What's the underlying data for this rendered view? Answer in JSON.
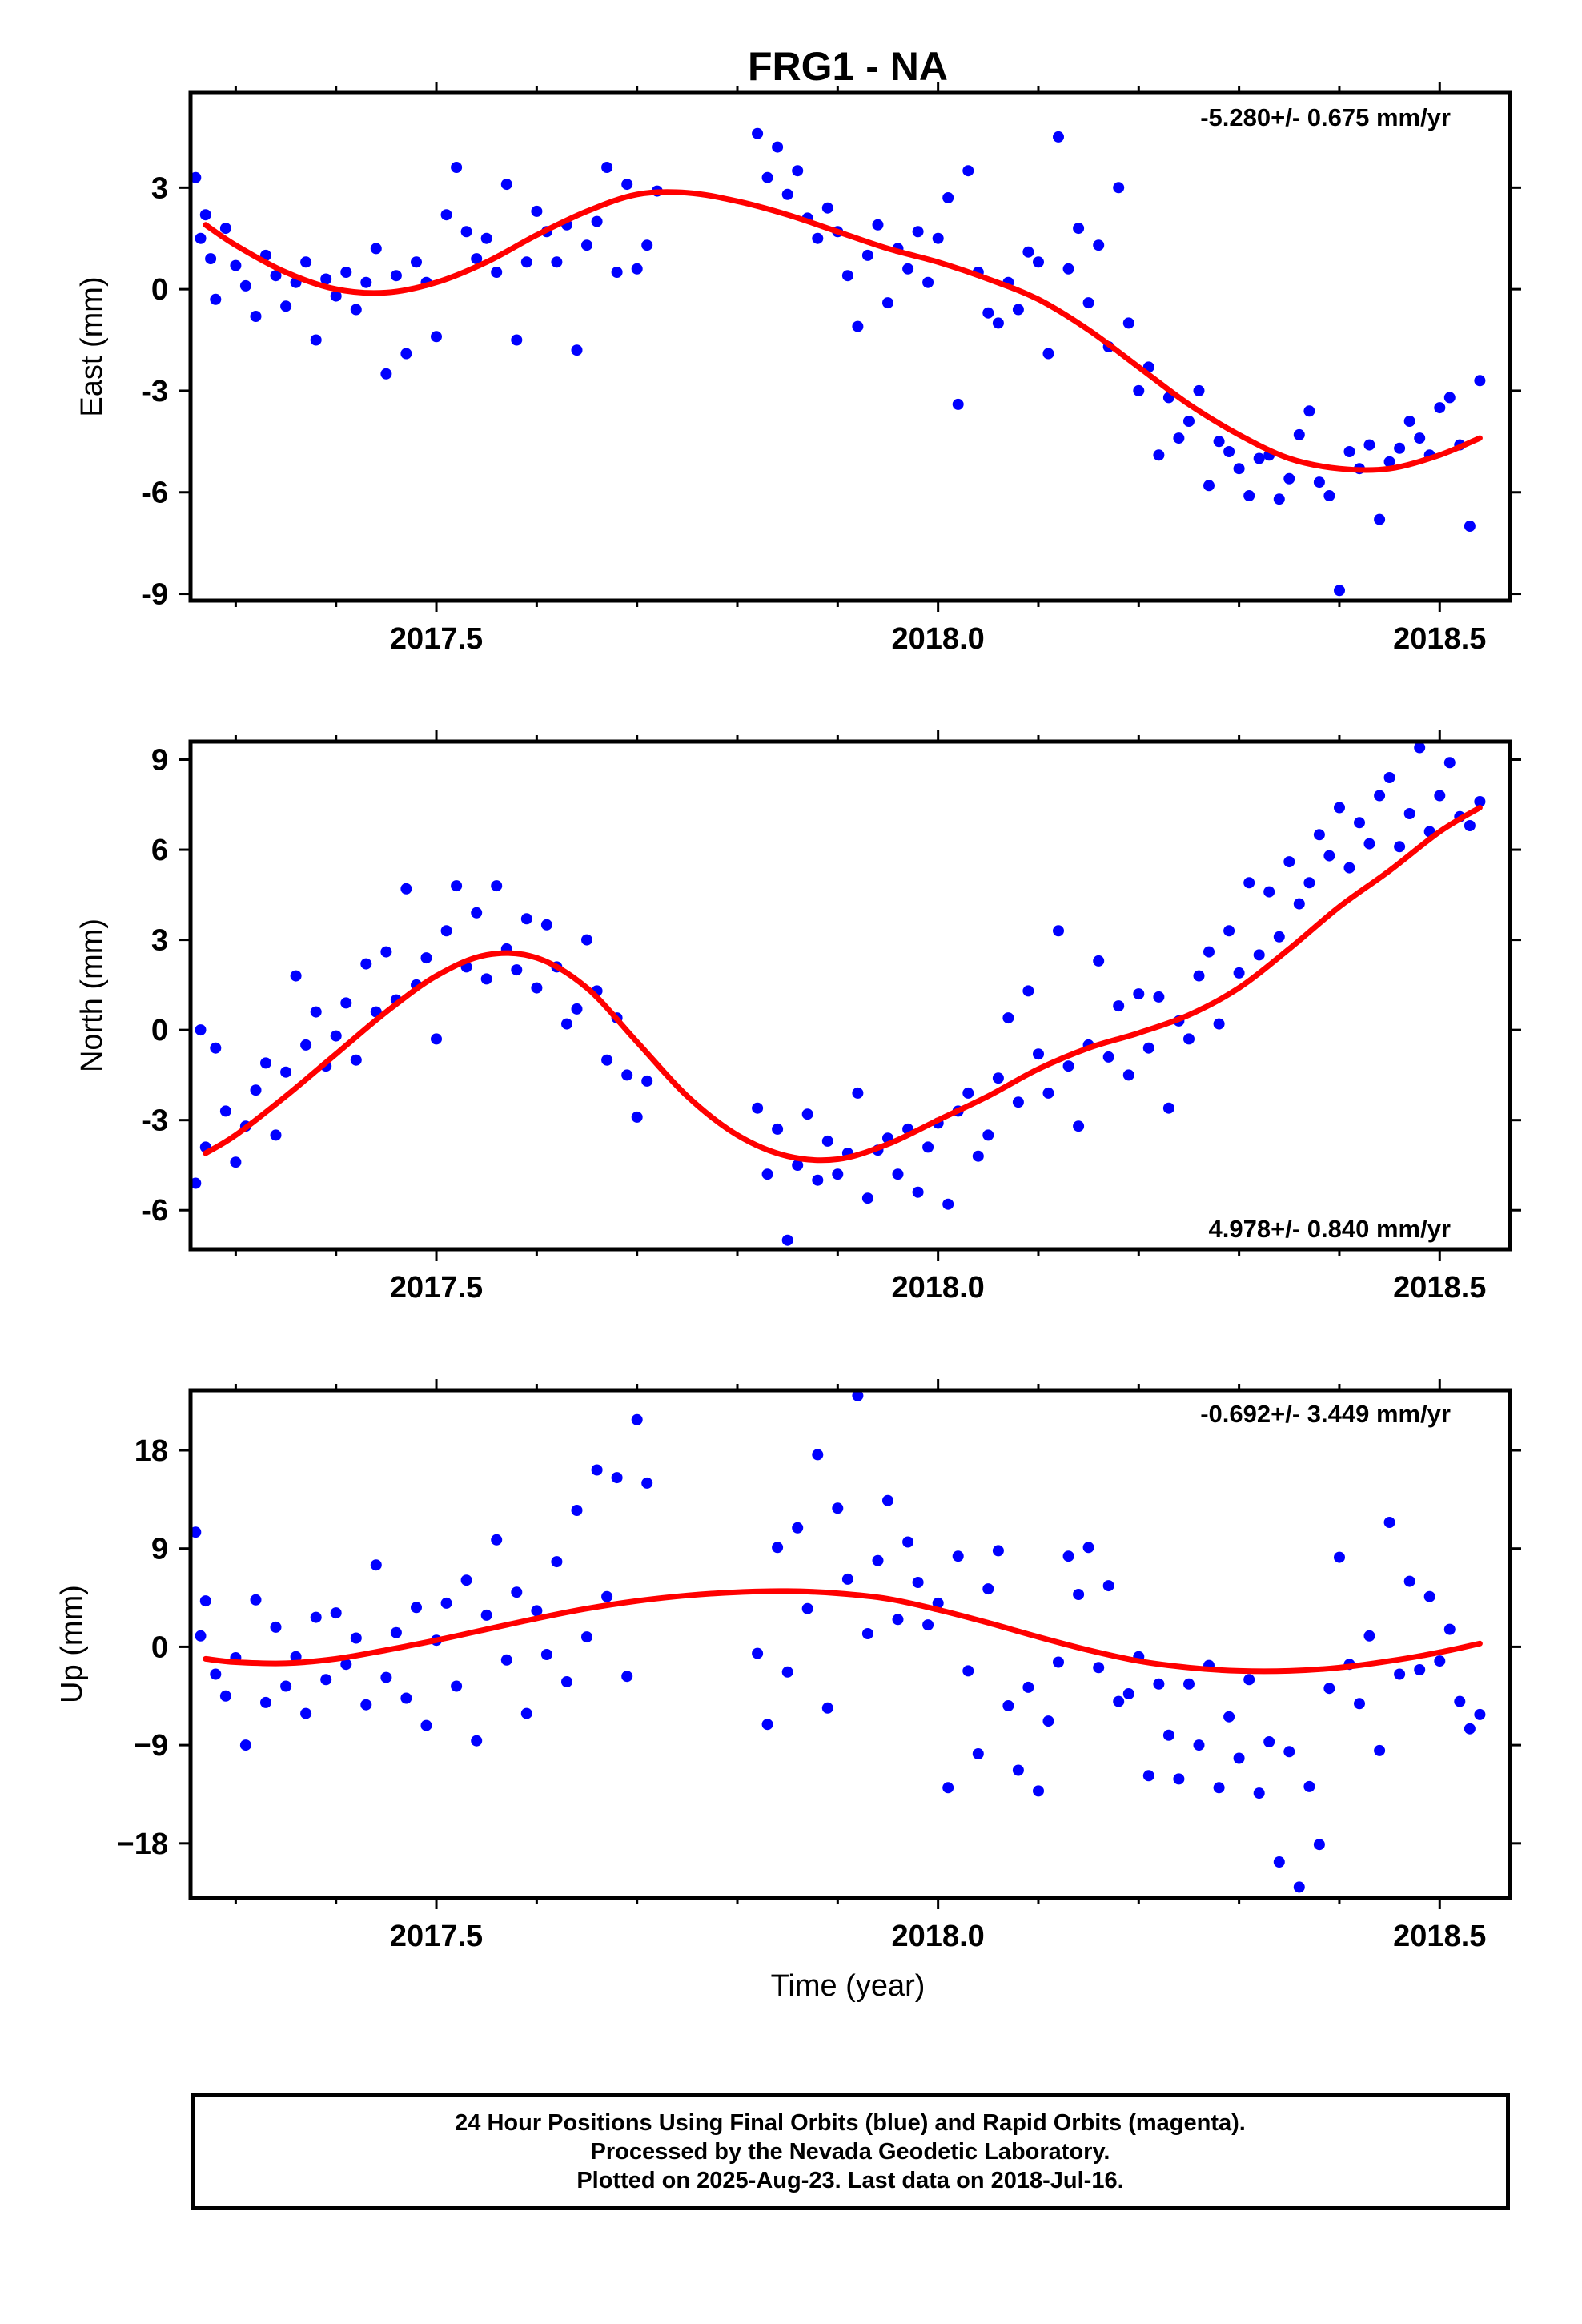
{
  "title": "FRG1 - NA",
  "xlabel": "Time (year)",
  "colors": {
    "points": "#0000ff",
    "fit": "#ff0000",
    "axes": "#000000"
  },
  "footer": {
    "line1": "24 Hour Positions Using Final Orbits (blue) and Rapid Orbits (magenta).",
    "line2": "Processed by the Nevada Geodetic Laboratory.",
    "line3": "Plotted on 2025-Aug-23. Last data on 2018-Jul-16."
  },
  "chart_data": [
    {
      "type": "scatter",
      "ylabel": "East (mm)",
      "rate_text": "-5.280+/- 0.675 mm/yr",
      "rate_position": "top-right",
      "xlim": [
        2017.255,
        2018.57
      ],
      "ylim": [
        -9.2,
        5.8
      ],
      "x_ticks": [
        2017.5,
        2018.0,
        2018.5
      ],
      "x_tick_labels": [
        "2017.5",
        "2018.0",
        "2018.5"
      ],
      "y_ticks": [
        -9,
        -6,
        -3,
        0,
        3
      ],
      "y_tick_labels": [
        "-9",
        "-6",
        "-3",
        "0",
        "3"
      ],
      "fit_curve": {
        "name": "fit",
        "x": [
          2017.27,
          2017.3,
          2017.35,
          2017.4,
          2017.45,
          2017.5,
          2017.55,
          2017.6,
          2017.65,
          2017.7,
          2017.75,
          2017.8,
          2017.85,
          2017.9,
          2017.95,
          2018.0,
          2018.05,
          2018.1,
          2018.15,
          2018.2,
          2018.25,
          2018.3,
          2018.35,
          2018.4,
          2018.45,
          2018.5,
          2018.54
        ],
        "y": [
          1.9,
          1.3,
          0.5,
          0.0,
          -0.1,
          0.2,
          0.8,
          1.6,
          2.3,
          2.8,
          2.85,
          2.6,
          2.2,
          1.7,
          1.2,
          0.8,
          0.3,
          -0.3,
          -1.2,
          -2.3,
          -3.4,
          -4.3,
          -5.0,
          -5.3,
          -5.3,
          -4.9,
          -4.4
        ]
      },
      "points": {
        "name": "observations",
        "x": [
          2017.26,
          2017.265,
          2017.27,
          2017.275,
          2017.28,
          2017.29,
          2017.3,
          2017.31,
          2017.32,
          2017.33,
          2017.34,
          2017.35,
          2017.36,
          2017.37,
          2017.38,
          2017.39,
          2017.4,
          2017.41,
          2017.42,
          2017.43,
          2017.44,
          2017.45,
          2017.46,
          2017.47,
          2017.48,
          2017.49,
          2017.5,
          2017.51,
          2017.52,
          2017.53,
          2017.54,
          2017.55,
          2017.56,
          2017.57,
          2017.58,
          2017.59,
          2017.6,
          2017.61,
          2017.62,
          2017.63,
          2017.64,
          2017.65,
          2017.66,
          2017.67,
          2017.68,
          2017.69,
          2017.7,
          2017.71,
          2017.72,
          2017.82,
          2017.83,
          2017.84,
          2017.85,
          2017.86,
          2017.87,
          2017.88,
          2017.89,
          2017.9,
          2017.91,
          2017.92,
          2017.93,
          2017.94,
          2017.95,
          2017.96,
          2017.97,
          2017.98,
          2017.99,
          2018.0,
          2018.01,
          2018.02,
          2018.03,
          2018.04,
          2018.05,
          2018.06,
          2018.07,
          2018.08,
          2018.09,
          2018.1,
          2018.11,
          2018.12,
          2018.13,
          2018.14,
          2018.15,
          2018.16,
          2018.17,
          2018.18,
          2018.19,
          2018.2,
          2018.21,
          2018.22,
          2018.23,
          2018.24,
          2018.25,
          2018.26,
          2018.27,
          2018.28,
          2018.29,
          2018.3,
          2018.31,
          2018.32,
          2018.33,
          2018.34,
          2018.35,
          2018.36,
          2018.37,
          2018.38,
          2018.39,
          2018.4,
          2018.41,
          2018.42,
          2018.43,
          2018.44,
          2018.45,
          2018.46,
          2018.47,
          2018.48,
          2018.49,
          2018.5,
          2018.51,
          2018.52,
          2018.53,
          2018.54
        ],
        "y": [
          3.3,
          1.5,
          2.2,
          0.9,
          -0.3,
          1.8,
          0.7,
          0.1,
          -0.8,
          1.0,
          0.4,
          -0.5,
          0.2,
          0.8,
          -1.5,
          0.3,
          -0.2,
          0.5,
          -0.6,
          0.2,
          1.2,
          -2.5,
          0.4,
          -1.9,
          0.8,
          0.2,
          -1.4,
          2.2,
          3.6,
          1.7,
          0.9,
          1.5,
          0.5,
          3.1,
          -1.5,
          0.8,
          2.3,
          1.7,
          0.8,
          1.9,
          -1.8,
          1.3,
          2.0,
          3.6,
          0.5,
          3.1,
          0.6,
          1.3,
          2.9,
          4.6,
          3.3,
          4.2,
          2.8,
          3.5,
          2.1,
          1.5,
          2.4,
          1.7,
          0.4,
          -1.1,
          1.0,
          1.9,
          -0.4,
          1.2,
          0.6,
          1.7,
          0.2,
          1.5,
          2.7,
          -3.4,
          3.5,
          0.5,
          -0.7,
          -1.0,
          0.2,
          -0.6,
          1.1,
          0.8,
          -1.9,
          4.5,
          0.6,
          1.8,
          -0.4,
          1.3,
          -1.7,
          3.0,
          -1.0,
          -3.0,
          -2.3,
          -4.9,
          -3.2,
          -4.4,
          -3.9,
          -3.0,
          -5.8,
          -4.5,
          -4.8,
          -5.3,
          -6.1,
          -5.0,
          -4.9,
          -6.2,
          -5.6,
          -4.3,
          -3.6,
          -5.7,
          -6.1,
          -8.9,
          -4.8,
          -5.3,
          -4.6,
          -6.8,
          -5.1,
          -4.7,
          -3.9,
          -4.4,
          -4.9,
          -3.5,
          -3.2,
          -4.6,
          -7.0,
          -2.7
        ]
      }
    },
    {
      "type": "scatter",
      "ylabel": "North (mm)",
      "rate_text": "4.978+/- 0.840 mm/yr",
      "rate_position": "bottom-right",
      "xlim": [
        2017.255,
        2018.57
      ],
      "ylim": [
        -7.3,
        9.6
      ],
      "x_ticks": [
        2017.5,
        2018.0,
        2018.5
      ],
      "x_tick_labels": [
        "2017.5",
        "2018.0",
        "2018.5"
      ],
      "y_ticks": [
        -6,
        -3,
        0,
        3,
        6,
        9
      ],
      "y_tick_labels": [
        "-6",
        "-3",
        "0",
        "3",
        "6",
        "9"
      ],
      "fit_curve": {
        "name": "fit",
        "x": [
          2017.27,
          2017.3,
          2017.35,
          2017.4,
          2017.45,
          2017.5,
          2017.55,
          2017.6,
          2017.65,
          2017.7,
          2017.75,
          2017.8,
          2017.85,
          2017.9,
          2017.95,
          2018.0,
          2018.05,
          2018.1,
          2018.15,
          2018.2,
          2018.25,
          2018.3,
          2018.35,
          2018.4,
          2018.45,
          2018.5,
          2018.54
        ],
        "y": [
          -4.1,
          -3.5,
          -2.2,
          -0.8,
          0.6,
          1.8,
          2.5,
          2.4,
          1.4,
          -0.4,
          -2.2,
          -3.5,
          -4.2,
          -4.3,
          -3.8,
          -3.0,
          -2.2,
          -1.3,
          -0.6,
          -0.1,
          0.5,
          1.4,
          2.7,
          4.1,
          5.3,
          6.6,
          7.4
        ]
      },
      "points": {
        "name": "observations",
        "x": [
          2017.26,
          2017.265,
          2017.27,
          2017.28,
          2017.29,
          2017.3,
          2017.31,
          2017.32,
          2017.33,
          2017.34,
          2017.35,
          2017.36,
          2017.37,
          2017.38,
          2017.39,
          2017.4,
          2017.41,
          2017.42,
          2017.43,
          2017.44,
          2017.45,
          2017.46,
          2017.47,
          2017.48,
          2017.49,
          2017.5,
          2017.51,
          2017.52,
          2017.53,
          2017.54,
          2017.55,
          2017.56,
          2017.57,
          2017.58,
          2017.59,
          2017.6,
          2017.61,
          2017.62,
          2017.63,
          2017.64,
          2017.65,
          2017.66,
          2017.67,
          2017.68,
          2017.69,
          2017.7,
          2017.71,
          2017.82,
          2017.83,
          2017.84,
          2017.85,
          2017.86,
          2017.87,
          2017.88,
          2017.89,
          2017.9,
          2017.91,
          2017.92,
          2017.93,
          2017.94,
          2017.95,
          2017.96,
          2017.97,
          2017.98,
          2017.99,
          2018.0,
          2018.01,
          2018.02,
          2018.03,
          2018.04,
          2018.05,
          2018.06,
          2018.07,
          2018.08,
          2018.09,
          2018.1,
          2018.11,
          2018.12,
          2018.13,
          2018.14,
          2018.15,
          2018.16,
          2018.17,
          2018.18,
          2018.19,
          2018.2,
          2018.21,
          2018.22,
          2018.23,
          2018.24,
          2018.25,
          2018.26,
          2018.27,
          2018.28,
          2018.29,
          2018.3,
          2018.31,
          2018.32,
          2018.33,
          2018.34,
          2018.35,
          2018.36,
          2018.37,
          2018.38,
          2018.39,
          2018.4,
          2018.41,
          2018.42,
          2018.43,
          2018.44,
          2018.45,
          2018.46,
          2018.47,
          2018.48,
          2018.49,
          2018.5,
          2018.51,
          2018.52,
          2018.53,
          2018.54
        ],
        "y": [
          -5.1,
          0.0,
          -3.9,
          -0.6,
          -2.7,
          -4.4,
          -3.2,
          -2.0,
          -1.1,
          -3.5,
          -1.4,
          1.8,
          -0.5,
          0.6,
          -1.2,
          -0.2,
          0.9,
          -1.0,
          2.2,
          0.6,
          2.6,
          1.0,
          4.7,
          1.5,
          2.4,
          -0.3,
          3.3,
          4.8,
          2.1,
          3.9,
          1.7,
          4.8,
          2.7,
          2.0,
          3.7,
          1.4,
          3.5,
          2.1,
          0.2,
          0.7,
          3.0,
          1.3,
          -1.0,
          0.4,
          -1.5,
          -2.9,
          -1.7,
          -2.6,
          -4.8,
          -3.3,
          -7.0,
          -4.5,
          -2.8,
          -5.0,
          -3.7,
          -4.8,
          -4.1,
          -2.1,
          -5.6,
          -4.0,
          -3.6,
          -4.8,
          -3.3,
          -5.4,
          -3.9,
          -3.1,
          -5.8,
          -2.7,
          -2.1,
          -4.2,
          -3.5,
          -1.6,
          0.4,
          -2.4,
          1.3,
          -0.8,
          -2.1,
          3.3,
          -1.2,
          -3.2,
          -0.5,
          2.3,
          -0.9,
          0.8,
          -1.5,
          1.2,
          -0.6,
          1.1,
          -2.6,
          0.3,
          -0.3,
          1.8,
          2.6,
          0.2,
          3.3,
          1.9,
          4.9,
          2.5,
          4.6,
          3.1,
          5.6,
          4.2,
          4.9,
          6.5,
          5.8,
          7.4,
          5.4,
          6.9,
          6.2,
          7.8,
          8.4,
          6.1,
          7.2,
          9.4,
          6.6,
          7.8,
          8.9,
          7.1,
          6.8,
          7.6
        ]
      }
    },
    {
      "type": "scatter",
      "ylabel": "Up (mm)",
      "rate_text": "-0.692+/- 3.449 mm/yr",
      "rate_position": "top-right",
      "xlim": [
        2017.255,
        2018.57
      ],
      "ylim": [
        -23.0,
        23.5
      ],
      "x_ticks": [
        2017.5,
        2018.0,
        2018.5
      ],
      "x_tick_labels": [
        "2017.5",
        "2018.0",
        "2018.5"
      ],
      "y_ticks": [
        -18,
        -9,
        0,
        9,
        18
      ],
      "y_tick_labels": [
        "−18",
        "−9",
        "0",
        "9",
        "18"
      ],
      "fit_curve": {
        "name": "fit",
        "x": [
          2017.27,
          2017.3,
          2017.35,
          2017.4,
          2017.45,
          2017.5,
          2017.55,
          2017.6,
          2017.65,
          2017.7,
          2017.75,
          2017.8,
          2017.85,
          2017.9,
          2017.95,
          2018.0,
          2018.05,
          2018.1,
          2018.15,
          2018.2,
          2018.25,
          2018.3,
          2018.35,
          2018.4,
          2018.45,
          2018.5,
          2018.54
        ],
        "y": [
          -1.1,
          -1.4,
          -1.5,
          -1.1,
          -0.3,
          0.6,
          1.6,
          2.6,
          3.5,
          4.2,
          4.7,
          5.0,
          5.1,
          4.9,
          4.4,
          3.4,
          2.2,
          0.9,
          -0.3,
          -1.3,
          -1.9,
          -2.2,
          -2.2,
          -1.9,
          -1.3,
          -0.5,
          0.3
        ]
      },
      "points": {
        "name": "observations",
        "x": [
          2017.26,
          2017.265,
          2017.27,
          2017.28,
          2017.29,
          2017.3,
          2017.31,
          2017.32,
          2017.33,
          2017.34,
          2017.35,
          2017.36,
          2017.37,
          2017.38,
          2017.39,
          2017.4,
          2017.41,
          2017.42,
          2017.43,
          2017.44,
          2017.45,
          2017.46,
          2017.47,
          2017.48,
          2017.49,
          2017.5,
          2017.51,
          2017.52,
          2017.53,
          2017.54,
          2017.55,
          2017.56,
          2017.57,
          2017.58,
          2017.59,
          2017.6,
          2017.61,
          2017.62,
          2017.63,
          2017.64,
          2017.65,
          2017.66,
          2017.67,
          2017.68,
          2017.69,
          2017.7,
          2017.71,
          2017.82,
          2017.83,
          2017.84,
          2017.85,
          2017.86,
          2017.87,
          2017.88,
          2017.89,
          2017.9,
          2017.91,
          2017.92,
          2017.93,
          2017.94,
          2017.95,
          2017.96,
          2017.97,
          2017.98,
          2017.99,
          2018.0,
          2018.01,
          2018.02,
          2018.03,
          2018.04,
          2018.05,
          2018.06,
          2018.07,
          2018.08,
          2018.09,
          2018.1,
          2018.11,
          2018.12,
          2018.13,
          2018.14,
          2018.15,
          2018.16,
          2018.17,
          2018.18,
          2018.19,
          2018.2,
          2018.21,
          2018.22,
          2018.23,
          2018.24,
          2018.25,
          2018.26,
          2018.27,
          2018.28,
          2018.29,
          2018.3,
          2018.31,
          2018.32,
          2018.33,
          2018.34,
          2018.35,
          2018.36,
          2018.37,
          2018.38,
          2018.39,
          2018.4,
          2018.41,
          2018.42,
          2018.43,
          2018.44,
          2018.45,
          2018.46,
          2018.47,
          2018.48,
          2018.49,
          2018.5,
          2018.51,
          2018.52,
          2018.53,
          2018.54
        ],
        "y": [
          10.5,
          1.0,
          4.2,
          -2.5,
          -4.5,
          -1.0,
          -9.0,
          4.3,
          -5.1,
          1.8,
          -3.6,
          -0.9,
          -6.1,
          2.7,
          -3.0,
          3.1,
          -1.6,
          0.8,
          -5.3,
          7.5,
          -2.8,
          1.3,
          -4.7,
          3.6,
          -7.2,
          0.6,
          4.0,
          -3.6,
          6.1,
          -8.6,
          2.9,
          9.8,
          -1.2,
          5.0,
          -6.1,
          3.3,
          -0.7,
          7.8,
          -3.2,
          12.5,
          0.9,
          16.2,
          4.6,
          15.5,
          -2.7,
          20.8,
          15.0,
          -0.6,
          -7.1,
          9.1,
          -2.3,
          10.9,
          3.5,
          17.6,
          -5.6,
          12.7,
          6.2,
          23.0,
          1.2,
          7.9,
          13.4,
          2.5,
          9.6,
          5.9,
          2.0,
          4.0,
          -12.9,
          8.3,
          -2.2,
          -9.8,
          5.3,
          8.8,
          -5.4,
          -11.3,
          -3.7,
          -13.2,
          -6.8,
          -1.4,
          8.3,
          4.8,
          9.1,
          -1.9,
          5.6,
          -5.0,
          -4.3,
          -0.9,
          -11.8,
          -3.4,
          -8.1,
          -12.1,
          -3.4,
          -9.0,
          -1.7,
          -12.9,
          -6.4,
          -10.2,
          -3.0,
          -13.4,
          -8.7,
          -19.7,
          -9.6,
          -22.0,
          -12.8,
          -18.1,
          -3.8,
          8.2,
          -1.6,
          -5.2,
          1.0,
          -9.5,
          11.4,
          -2.5,
          6.0,
          -2.1,
          4.6,
          -1.3,
          1.6,
          -5.0,
          -7.5,
          -6.2
        ]
      }
    }
  ]
}
